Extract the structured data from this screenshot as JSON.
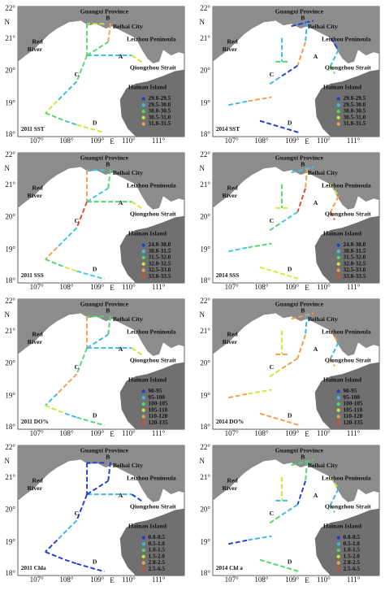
{
  "map": {
    "lat_labels": [
      "22°",
      "21°",
      "20°",
      "19°",
      "18°"
    ],
    "north": "N",
    "lon_labels": [
      "107°",
      "108°",
      "109°",
      "110°",
      "111°"
    ],
    "east": "E",
    "places": {
      "guangxi": "Guangxi Province",
      "beihai": "Beihai City",
      "red_river": [
        "Red",
        "River"
      ],
      "leizhou": "Leizhou Peninsula",
      "qiongzhou": "Qiongzhou Strait",
      "hainan": "Hainan Island",
      "sections": [
        "A",
        "B",
        "C",
        "D"
      ]
    }
  },
  "panels": [
    {
      "label": "2011 SST",
      "legend": [
        {
          "range": "29.0-29.5",
          "color": "#1f3fd0"
        },
        {
          "range": "29.5-30.0",
          "color": "#3fb8e8"
        },
        {
          "range": "30.0-30.5",
          "color": "#4fd96a"
        },
        {
          "range": "30.5-31.0",
          "color": "#c8e83a"
        },
        {
          "range": "31.0-31.5",
          "color": "#f0a050"
        }
      ],
      "track_colors": [
        "#c8e83a",
        "#4fd96a",
        "#3fb8e8",
        "#c8e83a",
        "#4fd96a",
        "#f0a050",
        "#4fd96a",
        "#3fb8e8"
      ]
    },
    {
      "label": "2014 SST",
      "legend": [
        {
          "range": "29.0-29.5",
          "color": "#1f3fd0"
        },
        {
          "range": "29.5-30.0",
          "color": "#3fb8e8"
        },
        {
          "range": "30.0-30.5",
          "color": "#4fd96a"
        },
        {
          "range": "30.5-31.0",
          "color": "#c8e83a"
        },
        {
          "range": "31.0-31.5",
          "color": "#f0a050"
        }
      ],
      "track_colors": [
        "#1f3fd0",
        "#3fb8e8",
        "#4fd96a",
        "#3fb8e8",
        "#f0a050",
        "#1f3fd0",
        "#3fb8e8"
      ]
    },
    {
      "label": "2011 SSS",
      "legend": [
        {
          "range": "24.0-30.0",
          "color": "#1f3fd0"
        },
        {
          "range": "30.0-31.5",
          "color": "#3fc8e0"
        },
        {
          "range": "31.5-32.0",
          "color": "#4fd96a"
        },
        {
          "range": "32.0-32.5",
          "color": "#d8e83a"
        },
        {
          "range": "32.5-33.0",
          "color": "#f0a050"
        },
        {
          "range": "33.0-33.5",
          "color": "#e04a2a"
        }
      ],
      "track_colors": [
        "#3fc8e0",
        "#f0a050",
        "#4fd96a",
        "#d8e83a",
        "#3fc8e0",
        "#4fd96a",
        "#e04a2a"
      ]
    },
    {
      "label": "2014 SSS",
      "legend": [
        {
          "range": "24.0-30.0",
          "color": "#1f3fd0"
        },
        {
          "range": "30.0-31.5",
          "color": "#3fc8e0"
        },
        {
          "range": "31.5-32.0",
          "color": "#4fd96a"
        },
        {
          "range": "32.0-32.5",
          "color": "#d8e83a"
        },
        {
          "range": "32.5-33.0",
          "color": "#f0a050"
        },
        {
          "range": "33.0-33.5",
          "color": "#e04a2a"
        }
      ],
      "track_colors": [
        "#3fc8e0",
        "#4fd96a",
        "#d8e83a",
        "#f0a050",
        "#e04a2a"
      ]
    },
    {
      "label": "2011 DO%",
      "legend": [
        {
          "range": "90-95",
          "color": "#1f3fd0"
        },
        {
          "range": "95-100",
          "color": "#3fb8e8"
        },
        {
          "range": "100-105",
          "color": "#4fd96a"
        },
        {
          "range": "105-110",
          "color": "#c8e83a"
        },
        {
          "range": "110-120",
          "color": "#f0a050"
        },
        {
          "range": "120-135",
          "color": "#e04a2a"
        }
      ],
      "track_colors": [
        "#4fd96a",
        "#f0a050",
        "#3fb8e8",
        "#c8e83a",
        "#3fb8e8",
        "#4fd96a"
      ]
    },
    {
      "label": "2014 DO%",
      "legend": [
        {
          "range": "90-95",
          "color": "#1f3fd0"
        },
        {
          "range": "95-100",
          "color": "#3fb8e8"
        },
        {
          "range": "100-105",
          "color": "#4fd96a"
        },
        {
          "range": "105-110",
          "color": "#c8e83a"
        },
        {
          "range": "110-120",
          "color": "#f0a050"
        },
        {
          "range": "120-135",
          "color": "#e04a2a"
        }
      ],
      "track_colors": [
        "#f0a050",
        "#c8e83a",
        "#f0a050",
        "#3fb8e8",
        "#f0a050"
      ]
    },
    {
      "label": "2011 Chla",
      "legend": [
        {
          "range": "0.0-0.5",
          "color": "#1f3fd0"
        },
        {
          "range": "0.5-1.0",
          "color": "#3fb8e8"
        },
        {
          "range": "1.0-1.5",
          "color": "#4fd96a"
        },
        {
          "range": "1.5-2.0",
          "color": "#c8e83a"
        },
        {
          "range": "2.0-2.5",
          "color": "#f0a050"
        },
        {
          "range": "2.5-6.5",
          "color": "#e04a2a"
        }
      ],
      "track_colors": [
        "#1f3fd0",
        "#1f3fd0",
        "#3fb8e8",
        "#1f3fd0",
        "#1f3fd0"
      ]
    },
    {
      "label": "2014 Chl a",
      "legend": [
        {
          "range": "0.0-0.5",
          "color": "#1f3fd0"
        },
        {
          "range": "0.5-1.0",
          "color": "#3fb8e8"
        },
        {
          "range": "1.0-1.5",
          "color": "#4fd96a"
        },
        {
          "range": "1.5-2.0",
          "color": "#c8e83a"
        },
        {
          "range": "2.0-2.5",
          "color": "#f0a050"
        },
        {
          "range": "2.5-6.5",
          "color": "#e04a2a"
        }
      ],
      "track_colors": [
        "#4fd96a",
        "#c8e83a",
        "#3fb8e8",
        "#4fd96a",
        "#1f3fd0",
        "#3fb8e8"
      ]
    }
  ]
}
